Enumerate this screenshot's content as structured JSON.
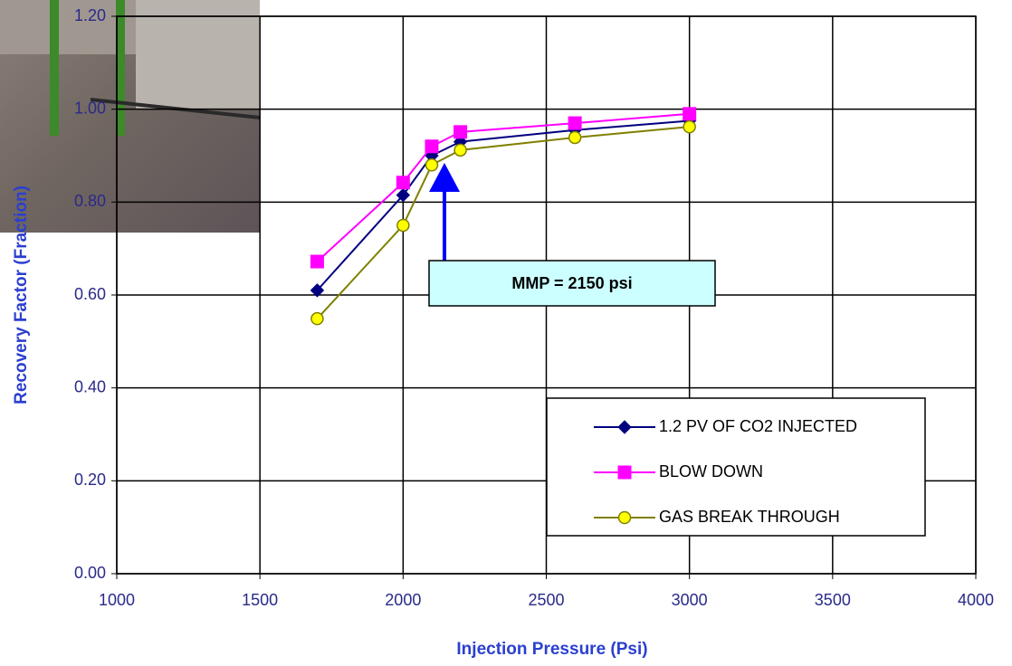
{
  "chart_data": {
    "type": "line",
    "x_label": "Injection Pressure (Psi)",
    "y_label": "Recovery Factor (Fraction)",
    "annotation": "MMP = 2150 psi",
    "x": [
      1700,
      2000,
      2100,
      2200,
      2600,
      3000
    ],
    "series": [
      {
        "name": "1.2 PV OF CO2 INJECTED",
        "color": "#000080",
        "marker": "diamond",
        "values": [
          0.61,
          0.815,
          0.9,
          0.93,
          0.955,
          0.975
        ]
      },
      {
        "name": "BLOW DOWN",
        "color": "#ff00ff",
        "marker": "square",
        "values": [
          0.672,
          0.842,
          0.92,
          0.951,
          0.97,
          0.99
        ]
      },
      {
        "name": "GAS BREAK THROUGH",
        "color": "#808000",
        "marker": "circle",
        "values": [
          0.549,
          0.75,
          0.88,
          0.912,
          0.939,
          0.962
        ]
      }
    ],
    "xlim": [
      1000,
      4000
    ],
    "xticks": [
      1000,
      1500,
      2000,
      2500,
      3000,
      3500,
      4000
    ],
    "ylim": [
      0,
      1.2
    ],
    "yticks": [
      {
        "value": 0,
        "label": "0.00"
      },
      {
        "value": 0.2,
        "label": "0.20"
      },
      {
        "value": 0.4,
        "label": "0.40"
      },
      {
        "value": 0.6,
        "label": "0.60"
      },
      {
        "value": 0.8,
        "label": "0.80"
      },
      {
        "value": 1.0,
        "label": "1.00"
      },
      {
        "value": 1.2,
        "label": "1.20"
      }
    ],
    "grid": true,
    "legend": "lower right"
  }
}
